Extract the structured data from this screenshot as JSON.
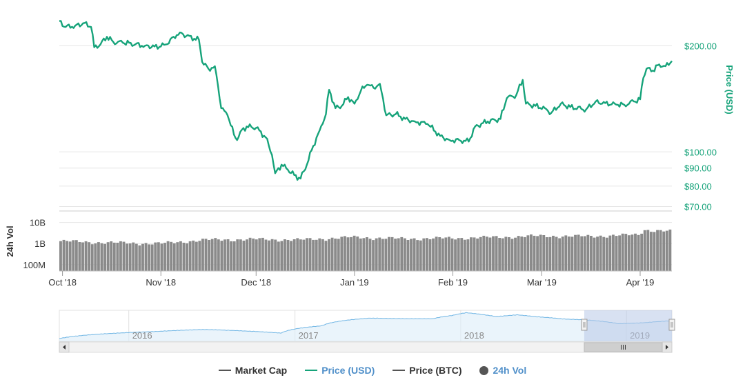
{
  "colors": {
    "price": "#16a37a",
    "market_cap": "#555555",
    "price_btc": "#555555",
    "volume_bar": "#8a8a8a",
    "grid": "#e6e6e6",
    "nav_line": "#6fb5e4",
    "nav_fill": "#dcecf8",
    "nav_mask": "#b8c8e8",
    "legend_vol_label": "#4f8fc9"
  },
  "legend": [
    {
      "label": "Market Cap",
      "color": "#555555",
      "symbol": "line"
    },
    {
      "label": "Price (USD)",
      "color": "#16a37a",
      "symbol": "line",
      "label_color": "#4f8fc9"
    },
    {
      "label": "Price (BTC)",
      "color": "#555555",
      "symbol": "line"
    },
    {
      "label": "24h Vol",
      "color": "#555555",
      "symbol": "circle",
      "label_color": "#4f8fc9"
    }
  ],
  "chart_data": [
    {
      "type": "line",
      "ylabel": "Price (USD)",
      "y_scale": "log",
      "ylim": [
        68,
        260
      ],
      "yticks": [
        {
          "value": 200,
          "label": "$200.00"
        },
        {
          "value": 100,
          "label": "$100.00"
        },
        {
          "value": 90,
          "label": "$90.00"
        },
        {
          "value": 80,
          "label": "$80.00"
        },
        {
          "value": 70,
          "label": "$70.00"
        }
      ],
      "xlim": [
        "2018-09-30",
        "2019-04-11"
      ],
      "xticks": [
        {
          "value": "2018-10-01",
          "label": "Oct '18"
        },
        {
          "value": "2018-11-01",
          "label": "Nov '18"
        },
        {
          "value": "2018-12-01",
          "label": "Dec '18"
        },
        {
          "value": "2019-01-01",
          "label": "Jan '19"
        },
        {
          "value": "2019-02-01",
          "label": "Feb '19"
        },
        {
          "value": "2019-03-01",
          "label": "Mar '19"
        },
        {
          "value": "2019-04-01",
          "label": "Apr '19"
        }
      ],
      "series": [
        {
          "name": "Price (USD)",
          "points": [
            [
              "2018-09-30",
              235
            ],
            [
              "2018-10-02",
              226
            ],
            [
              "2018-10-05",
              228
            ],
            [
              "2018-10-08",
              232
            ],
            [
              "2018-10-10",
              226
            ],
            [
              "2018-10-11",
              198
            ],
            [
              "2018-10-13",
              202
            ],
            [
              "2018-10-15",
              212
            ],
            [
              "2018-10-17",
              205
            ],
            [
              "2018-10-20",
              204
            ],
            [
              "2018-10-24",
              202
            ],
            [
              "2018-10-27",
              200
            ],
            [
              "2018-10-30",
              199
            ],
            [
              "2018-11-01",
              199
            ],
            [
              "2018-11-03",
              202
            ],
            [
              "2018-11-05",
              212
            ],
            [
              "2018-11-07",
              218
            ],
            [
              "2018-11-09",
              213
            ],
            [
              "2018-11-13",
              208
            ],
            [
              "2018-11-14",
              180
            ],
            [
              "2018-11-16",
              172
            ],
            [
              "2018-11-18",
              175
            ],
            [
              "2018-11-20",
              133
            ],
            [
              "2018-11-22",
              127
            ],
            [
              "2018-11-24",
              112
            ],
            [
              "2018-11-25",
              108
            ],
            [
              "2018-11-26",
              114
            ],
            [
              "2018-11-28",
              118
            ],
            [
              "2018-12-01",
              117
            ],
            [
              "2018-12-04",
              110
            ],
            [
              "2018-12-06",
              98
            ],
            [
              "2018-12-07",
              87
            ],
            [
              "2018-12-09",
              92
            ],
            [
              "2018-12-11",
              89
            ],
            [
              "2018-12-13",
              86
            ],
            [
              "2018-12-15",
              84
            ],
            [
              "2018-12-17",
              92
            ],
            [
              "2018-12-19",
              104
            ],
            [
              "2018-12-21",
              115
            ],
            [
              "2018-12-23",
              128
            ],
            [
              "2018-12-24",
              150
            ],
            [
              "2018-12-26",
              133
            ],
            [
              "2018-12-28",
              135
            ],
            [
              "2018-12-30",
              143
            ],
            [
              "2019-01-01",
              137
            ],
            [
              "2019-01-03",
              149
            ],
            [
              "2019-01-05",
              155
            ],
            [
              "2019-01-07",
              152
            ],
            [
              "2019-01-09",
              156
            ],
            [
              "2019-01-11",
              127
            ],
            [
              "2019-01-14",
              128
            ],
            [
              "2019-01-17",
              124
            ],
            [
              "2019-01-20",
              122
            ],
            [
              "2019-01-24",
              120
            ],
            [
              "2019-01-28",
              111
            ],
            [
              "2019-01-31",
              108
            ],
            [
              "2019-02-03",
              108
            ],
            [
              "2019-02-06",
              107
            ],
            [
              "2019-02-08",
              118
            ],
            [
              "2019-02-12",
              122
            ],
            [
              "2019-02-16",
              124
            ],
            [
              "2019-02-18",
              142
            ],
            [
              "2019-02-21",
              145
            ],
            [
              "2019-02-23",
              160
            ],
            [
              "2019-02-24",
              137
            ],
            [
              "2019-02-27",
              135
            ],
            [
              "2019-03-02",
              133
            ],
            [
              "2019-03-04",
              129
            ],
            [
              "2019-03-07",
              137
            ],
            [
              "2019-03-10",
              134
            ],
            [
              "2019-03-15",
              132
            ],
            [
              "2019-03-18",
              139
            ],
            [
              "2019-03-20",
              137
            ],
            [
              "2019-03-24",
              137
            ],
            [
              "2019-03-27",
              136
            ],
            [
              "2019-03-30",
              139
            ],
            [
              "2019-04-01",
              141
            ],
            [
              "2019-04-02",
              162
            ],
            [
              "2019-04-03",
              172
            ],
            [
              "2019-04-05",
              170
            ],
            [
              "2019-04-07",
              177
            ],
            [
              "2019-04-09",
              175
            ],
            [
              "2019-04-11",
              181
            ]
          ]
        }
      ]
    },
    {
      "type": "bar",
      "ylabel": "24h Vol",
      "y_scale": "log",
      "ylim": [
        50000000,
        30000000000
      ],
      "yticks": [
        {
          "value": 10000000000,
          "label": "10B"
        },
        {
          "value": 1000000000,
          "label": "1B"
        },
        {
          "value": 100000000,
          "label": "100M"
        }
      ],
      "xlim": [
        "2018-09-30",
        "2019-04-11"
      ],
      "series": [
        {
          "name": "24h Vol",
          "points": [
            [
              "2018-09-30",
              1300000000
            ],
            [
              "2018-10-15",
              1100000000
            ],
            [
              "2018-11-01",
              1000000000
            ],
            [
              "2018-11-15",
              1500000000
            ],
            [
              "2018-12-01",
              1600000000
            ],
            [
              "2018-12-15",
              1500000000
            ],
            [
              "2019-01-01",
              2000000000
            ],
            [
              "2019-01-15",
              1700000000
            ],
            [
              "2019-02-01",
              1800000000
            ],
            [
              "2019-02-15",
              2000000000
            ],
            [
              "2019-03-01",
              2300000000
            ],
            [
              "2019-03-15",
              2200000000
            ],
            [
              "2019-04-01",
              2600000000
            ],
            [
              "2019-04-03",
              4500000000
            ],
            [
              "2019-04-11",
              3800000000
            ]
          ]
        }
      ]
    },
    {
      "type": "area",
      "role": "navigator",
      "y_scale": "log",
      "xlim": [
        "2015-08-01",
        "2019-04-11"
      ],
      "selection": [
        "2018-09-30",
        "2019-04-11"
      ],
      "xticks": [
        {
          "value": "2016-01-01",
          "label": "2016"
        },
        {
          "value": "2017-01-01",
          "label": "2017"
        },
        {
          "value": "2018-01-01",
          "label": "2018"
        },
        {
          "value": "2019-01-01",
          "label": "2019"
        }
      ],
      "series": [
        {
          "name": "Price (USD)",
          "points": [
            [
              "2015-08-01",
              2
            ],
            [
              "2016-03-01",
              12
            ],
            [
              "2016-06-15",
              20
            ],
            [
              "2016-12-01",
              8
            ],
            [
              "2017-03-01",
              50
            ],
            [
              "2017-06-15",
              350
            ],
            [
              "2017-09-01",
              300
            ],
            [
              "2017-11-01",
              300
            ],
            [
              "2017-12-15",
              700
            ],
            [
              "2018-01-13",
              1380
            ],
            [
              "2018-02-15",
              900
            ],
            [
              "2018-03-20",
              500
            ],
            [
              "2018-05-05",
              800
            ],
            [
              "2018-06-15",
              500
            ],
            [
              "2018-08-15",
              280
            ],
            [
              "2018-09-30",
              230
            ],
            [
              "2018-12-15",
              84
            ],
            [
              "2019-02-08",
              108
            ],
            [
              "2019-04-11",
              181
            ]
          ]
        }
      ]
    }
  ]
}
